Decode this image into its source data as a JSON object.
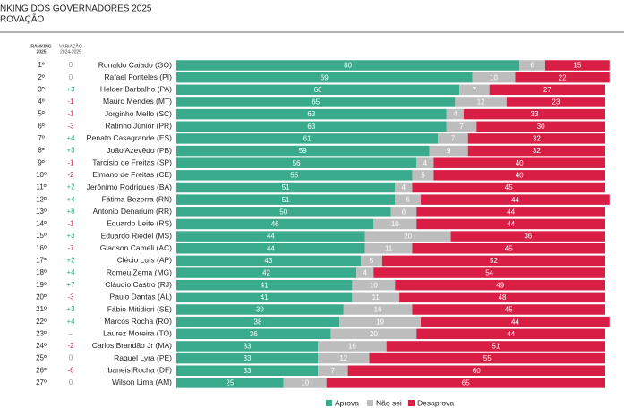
{
  "chart_data": {
    "type": "bar",
    "stacked": true,
    "orientation": "horizontal",
    "title": "NKING DOS GOVERNADORES 2025",
    "subtitle": "ROVAÇÃO",
    "rank_header": [
      "RANKING",
      "2025"
    ],
    "variation_header": [
      "VARIAÇÃO",
      "2024-2025"
    ],
    "ranks": [
      "1º",
      "2º",
      "3º",
      "4º",
      "5º",
      "6º",
      "7º",
      "8º",
      "9º",
      "10º",
      "11º",
      "12º",
      "13º",
      "14º",
      "15º",
      "16º",
      "17º",
      "18º",
      "19º",
      "20º",
      "21º",
      "22º",
      "23º",
      "24º",
      "25º",
      "26º",
      "27º"
    ],
    "variations": [
      "0",
      "0",
      "+3",
      "-1",
      "-1",
      "-3",
      "+4",
      "+3",
      "-1",
      "-2",
      "+2",
      "+4",
      "+8",
      "-1",
      "+3",
      "-7",
      "+2",
      "+4",
      "+7",
      "-3",
      "+3",
      "+4",
      "–",
      "-2",
      "0",
      "-6",
      "0"
    ],
    "categories": [
      "Ronaldo Caiado (GO)",
      "Rafael Fonteles (PI)",
      "Helder Barbalho (PA)",
      "Mauro Mendes (MT)",
      "Jorginho Mello (SC)",
      "Ratinho Júnior (PR)",
      "Renato Casagrande (ES)",
      "João Azevêdo (PB)",
      "Tarcísio de Freitas (SP)",
      "Elmano de Freitas (CE)",
      "Jerônimo Rodrigues (BA)",
      "Fátima Bezerra (RN)",
      "Antonio Denarium (RR)",
      "Eduardo Leite (RS)",
      "Eduardo Riedel (MS)",
      "Gladson Cameli (AC)",
      "Clécio Luís (AP)",
      "Romeu Zema (MG)",
      "Cláudio Castro (RJ)",
      "Paulo Dantas (AL)",
      "Fábio Mitidieri (SE)",
      "Marcos Rocha (RO)",
      "Laurez Moreira (TO)",
      "Carlos Brandão Jr (MA)",
      "Raquel Lyra (PE)",
      "Ibaneis Rocha (DF)",
      "Wilson Lima (AM)"
    ],
    "series": [
      {
        "name": "Aprova",
        "color": "#3aaa8c",
        "values": [
          80,
          69,
          66,
          65,
          63,
          63,
          61,
          59,
          56,
          55,
          51,
          51,
          50,
          46,
          44,
          44,
          43,
          42,
          41,
          41,
          39,
          38,
          36,
          33,
          33,
          33,
          25
        ]
      },
      {
        "name": "Não sei",
        "color": "#bdbdbd",
        "values": [
          6,
          10,
          7,
          12,
          4,
          7,
          7,
          9,
          4,
          5,
          4,
          6,
          6,
          10,
          20,
          11,
          5,
          4,
          10,
          11,
          16,
          19,
          20,
          16,
          12,
          7,
          10
        ]
      },
      {
        "name": "Desaprova",
        "color": "#d81e45",
        "values": [
          15,
          22,
          27,
          23,
          33,
          30,
          32,
          32,
          40,
          40,
          45,
          44,
          44,
          44,
          36,
          45,
          52,
          54,
          49,
          48,
          45,
          44,
          44,
          51,
          55,
          60,
          65
        ]
      }
    ]
  }
}
